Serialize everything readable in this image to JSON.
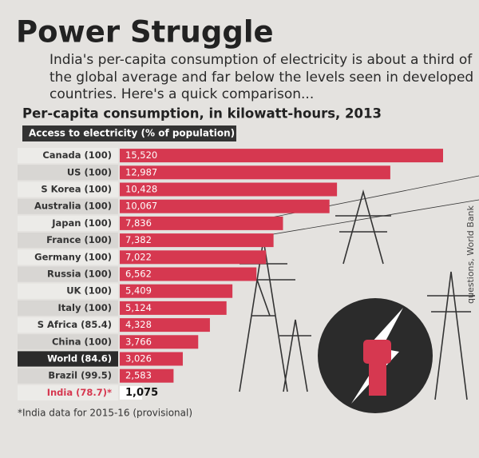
{
  "chart_data": {
    "type": "bar",
    "orientation": "horizontal",
    "title": "Power Struggle",
    "subtitle": [
      "India's per-capita consumption of electricity is about a third of",
      "the global average and far below the levels seen in developed",
      "countries. Here's a quick comparison..."
    ],
    "chart_title": "Per-capita consumption, in kilowatt-hours, 2013",
    "label_header": "Access to electricity (% of population)",
    "categories": [
      "Canada (100)",
      "US (100)",
      "S Korea (100)",
      "Australia (100)",
      "Japan (100)",
      "France (100)",
      "Germany (100)",
      "Russia (100)",
      "UK (100)",
      "Italy (100)",
      "S Africa (85.4)",
      "China (100)",
      "World (84.6)",
      "Brazil (99.5)",
      "India (78.7)*"
    ],
    "values": [
      15520,
      12987,
      10428,
      10067,
      7836,
      7382,
      7022,
      6562,
      5409,
      5124,
      4328,
      3766,
      3026,
      2583,
      1075
    ],
    "value_labels": [
      "15,520",
      "12,987",
      "10,428",
      "10,067",
      "7,836",
      "7,382",
      "7,022",
      "6,562",
      "5,409",
      "5,124",
      "4,328",
      "3,766",
      "3,026",
      "2,583",
      "1,075"
    ],
    "colors": [
      "#d63850",
      "#d63850",
      "#d63850",
      "#d63850",
      "#d63850",
      "#d63850",
      "#d63850",
      "#d63850",
      "#d63850",
      "#d63850",
      "#d63850",
      "#d63850",
      "#d63850",
      "#d63850",
      "#ffffff"
    ],
    "footnote": "*India data for 2015-16 (provisional)",
    "source": "questions, World Bank"
  }
}
